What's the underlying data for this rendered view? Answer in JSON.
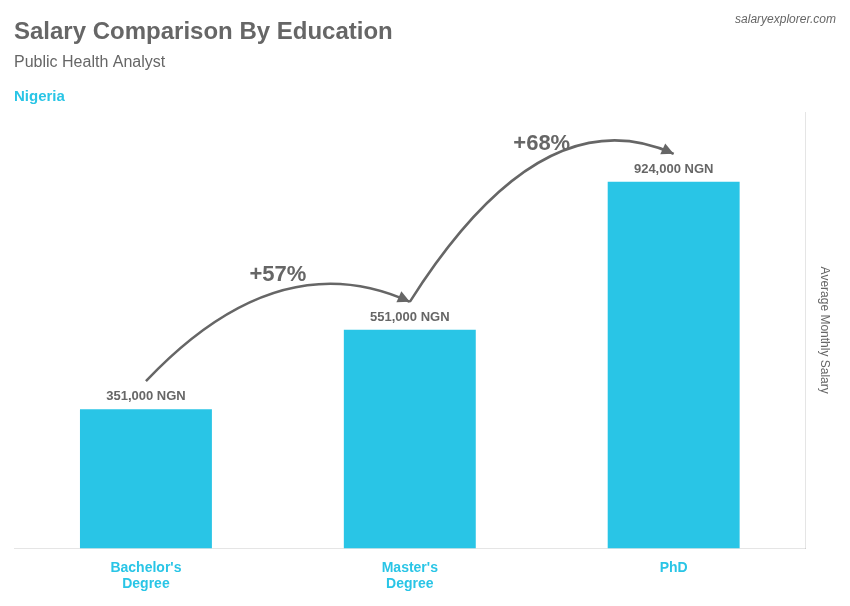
{
  "chart_data": {
    "type": "bar",
    "title": "Salary Comparison By Education",
    "subtitle": "Public Health Analyst",
    "ylabel": "Average Monthly Salary",
    "categories": [
      "Bachelor's\nDegree",
      "Master's\nDegree",
      "PhD"
    ],
    "values": [
      351000,
      551000,
      924000
    ],
    "value_labels": [
      "351,000 NGN",
      "551,000 NGN",
      "924,000 NGN"
    ],
    "color": "#29c5e6",
    "ylim": [
      0,
      1100000
    ],
    "grid": false,
    "data_labels": true,
    "tick_labels": "x",
    "annotations": [
      "Nigeria",
      "salaryexplorer.com",
      "+57%",
      "+68%"
    ]
  }
}
